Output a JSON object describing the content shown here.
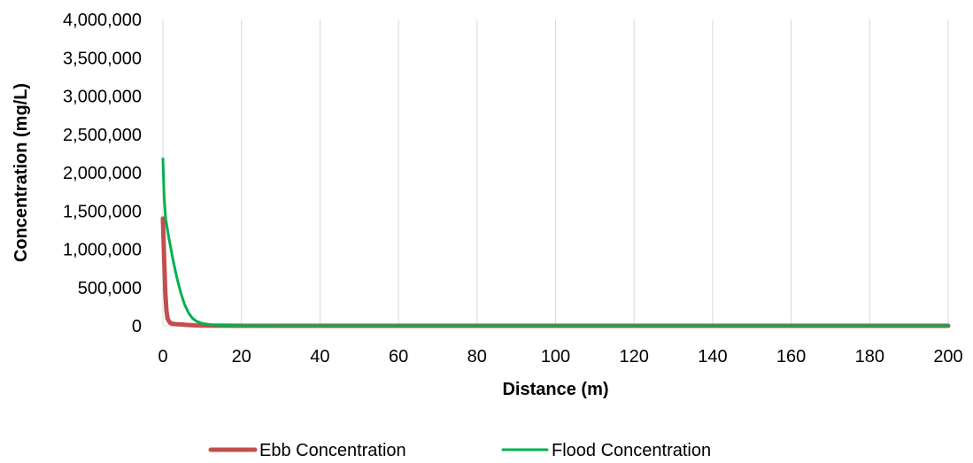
{
  "chart_data": {
    "type": "line",
    "title": "",
    "xlabel": "Distance (m)",
    "ylabel": "Concentration (mg/L)",
    "xlim": [
      0,
      200
    ],
    "ylim": [
      0,
      4000000
    ],
    "x_ticks": [
      "0",
      "20",
      "40",
      "60",
      "80",
      "100",
      "120",
      "140",
      "160",
      "180",
      "200"
    ],
    "y_ticks": [
      "0",
      "500,000",
      "1,000,000",
      "1,500,000",
      "2,000,000",
      "2,500,000",
      "3,000,000",
      "3,500,000",
      "4,000,000"
    ],
    "grid": "vertical",
    "legend_position": "bottom",
    "series": [
      {
        "name": "Ebb Concentration",
        "color": "#c0504d",
        "points": [
          [
            0,
            1400000
          ],
          [
            0.3,
            900000
          ],
          [
            0.6,
            450000
          ],
          [
            0.9,
            200000
          ],
          [
            1.2,
            90000
          ],
          [
            1.8,
            40000
          ],
          [
            2.5,
            25000
          ],
          [
            3.5,
            20000
          ],
          [
            4.5,
            18000
          ],
          [
            6,
            12000
          ],
          [
            8,
            6000
          ],
          [
            10,
            3000
          ],
          [
            14,
            1000
          ],
          [
            20,
            300
          ],
          [
            40,
            0
          ],
          [
            200,
            0
          ]
        ]
      },
      {
        "name": "Flood Concentration",
        "color": "#00b050",
        "points": [
          [
            0,
            2180000
          ],
          [
            0.3,
            1700000
          ],
          [
            0.7,
            1400000
          ],
          [
            1.5,
            1150000
          ],
          [
            2.5,
            880000
          ],
          [
            3.5,
            640000
          ],
          [
            4.5,
            440000
          ],
          [
            5.5,
            280000
          ],
          [
            6.5,
            170000
          ],
          [
            7.5,
            100000
          ],
          [
            8.5,
            60000
          ],
          [
            10,
            30000
          ],
          [
            12,
            15000
          ],
          [
            15,
            6000
          ],
          [
            20,
            2000
          ],
          [
            30,
            500
          ],
          [
            50,
            0
          ],
          [
            200,
            0
          ]
        ]
      }
    ]
  }
}
